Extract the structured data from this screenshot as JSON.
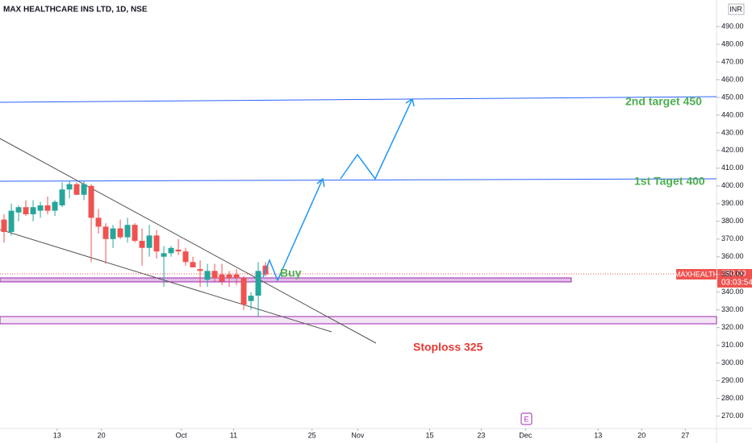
{
  "chart_data": {
    "type": "candlestick",
    "title": "MAX HEALTHCARE INS LTD, 1D, NSE",
    "currency": "INR",
    "up_color": "#26a69a",
    "down_color": "#ef5350",
    "ylim": [
      263,
      505
    ],
    "yticks": [
      {
        "value": 490,
        "label": "490.00"
      },
      {
        "value": 480,
        "label": "480.00"
      },
      {
        "value": 470,
        "label": "470.00"
      },
      {
        "value": 460,
        "label": "460.00"
      },
      {
        "value": 450,
        "label": "450.00"
      },
      {
        "value": 440,
        "label": "440.00"
      },
      {
        "value": 430,
        "label": "430.00"
      },
      {
        "value": 420,
        "label": "420.00"
      },
      {
        "value": 410,
        "label": "410.00"
      },
      {
        "value": 400,
        "label": "400.00"
      },
      {
        "value": 390,
        "label": "390.00"
      },
      {
        "value": 380,
        "label": "380.00"
      },
      {
        "value": 370,
        "label": "370.00"
      },
      {
        "value": 360,
        "label": "360.00"
      },
      {
        "value": 350,
        "label": "350.00"
      },
      {
        "value": 340,
        "label": "340.00"
      },
      {
        "value": 330,
        "label": "330.00"
      },
      {
        "value": 320,
        "label": "320.00"
      },
      {
        "value": 310,
        "label": "310.00"
      },
      {
        "value": 300,
        "label": "300.00"
      },
      {
        "value": 290,
        "label": "290.00"
      },
      {
        "value": 280,
        "label": "280.00"
      },
      {
        "value": 270,
        "label": "270.00"
      }
    ],
    "xlim": [
      -0.56,
      98.1
    ],
    "xticks": [
      {
        "value": 7.3,
        "label": "13"
      },
      {
        "value": 13.4,
        "label": "20"
      },
      {
        "value": 24.4,
        "label": "Oct"
      },
      {
        "value": 31.6,
        "label": "11"
      },
      {
        "value": 42.4,
        "label": "25"
      },
      {
        "value": 48.7,
        "label": "Nov"
      },
      {
        "value": 58.6,
        "label": "15"
      },
      {
        "value": 65.7,
        "label": "23"
      },
      {
        "value": 71.8,
        "label": "Dec"
      },
      {
        "value": 81.8,
        "label": "13"
      },
      {
        "value": 87.8,
        "label": "20"
      },
      {
        "value": 93.8,
        "label": "27"
      }
    ],
    "open": [
      381,
      374,
      385,
      388,
      384,
      386,
      389,
      386,
      389,
      398,
      401,
      395,
      400,
      382,
      377,
      370,
      376,
      371,
      378,
      369,
      365,
      372,
      360,
      362,
      364,
      363,
      357,
      353,
      347,
      352,
      350,
      350,
      350,
      348,
      335,
      338,
      355
    ],
    "high": [
      384,
      390,
      389,
      392,
      392,
      391,
      394,
      392,
      402,
      403,
      402,
      403,
      401,
      387,
      379,
      378,
      381,
      382,
      379,
      376,
      378,
      375,
      366,
      366,
      370,
      365,
      360,
      358,
      356,
      356,
      356,
      352,
      353,
      349,
      340,
      357,
      357
    ],
    "low": [
      368,
      372,
      380,
      383,
      380,
      382,
      384,
      383,
      388,
      393,
      395,
      392,
      357,
      373,
      356,
      365,
      370,
      368,
      368,
      355,
      360,
      359,
      343,
      360,
      361,
      355,
      354,
      343,
      343,
      346,
      344,
      343,
      344,
      330,
      330,
      326,
      349
    ],
    "close": [
      374,
      386,
      388,
      384,
      388,
      389,
      386,
      391,
      398,
      401,
      395,
      401,
      382,
      377,
      370,
      376,
      371,
      378,
      369,
      365,
      372,
      363,
      362,
      365,
      363,
      357,
      354,
      352,
      352,
      348,
      346,
      348,
      348,
      333,
      338,
      352,
      350
    ],
    "annotations": {
      "target2": "2nd target 450",
      "target1": "1st Taget 400",
      "buy": "Buy",
      "stoploss": "Stoploss 325"
    },
    "price_label": {
      "symbol": "MAXHEALTH",
      "price": {
        "value": 350,
        "label": "350.00"
      },
      "countdown": "03:03:54"
    },
    "earnings_marker": "E"
  }
}
